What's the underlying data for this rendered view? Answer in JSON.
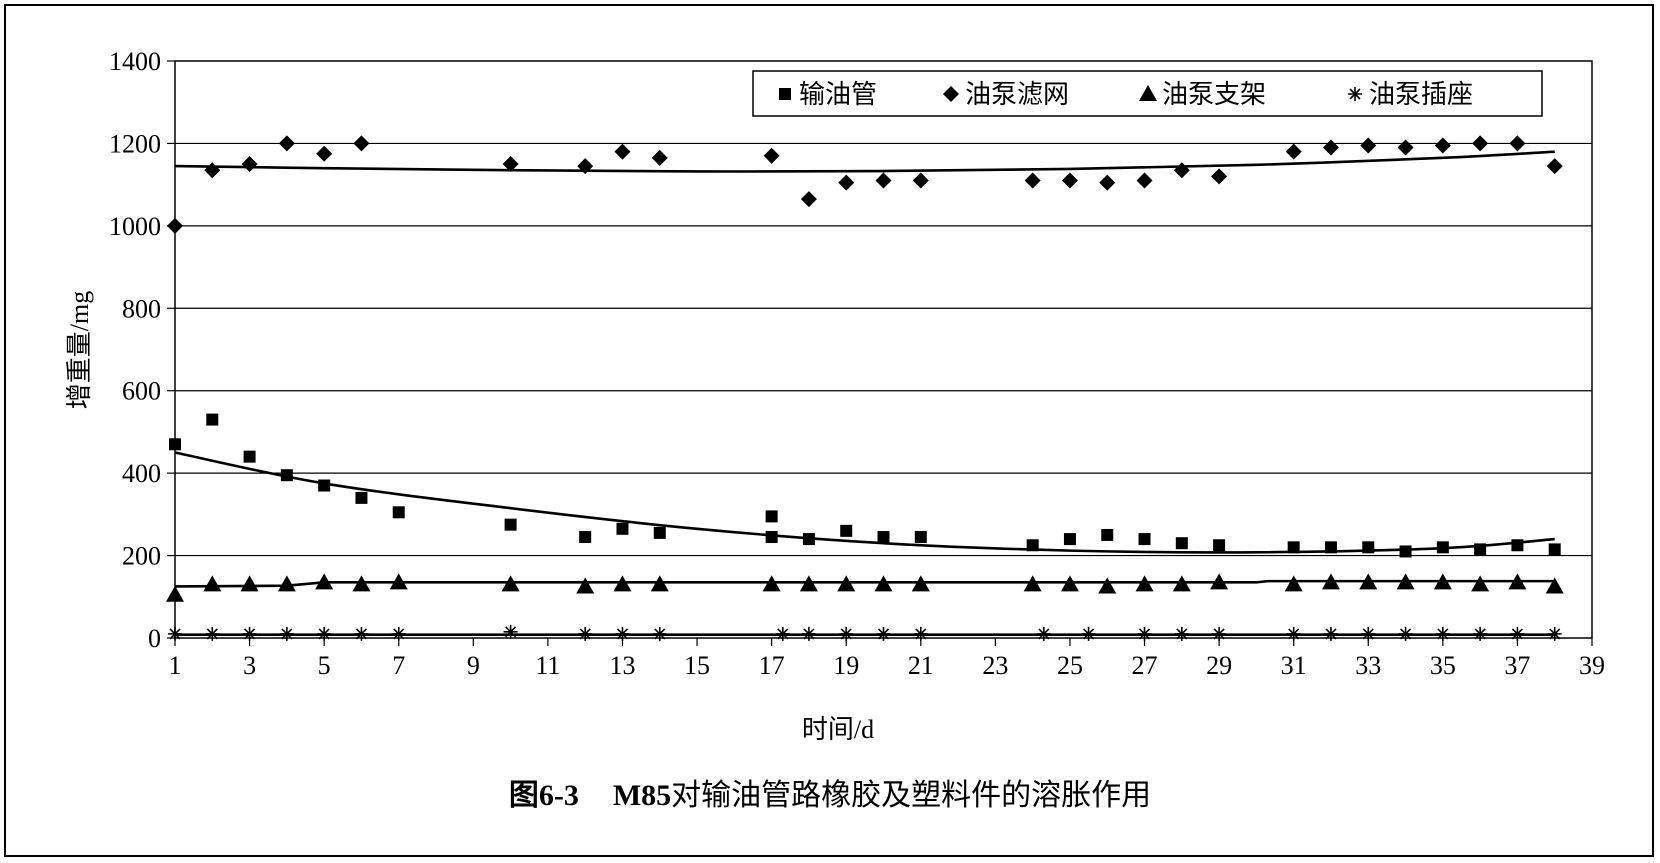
{
  "chart_data": {
    "type": "scatter",
    "title": "",
    "xlabel": "时间/d",
    "ylabel": "增重量/mg",
    "xlim": [
      1,
      39
    ],
    "ylim": [
      0,
      1400
    ],
    "xticks": [
      1,
      3,
      5,
      7,
      9,
      11,
      13,
      15,
      17,
      19,
      21,
      23,
      25,
      27,
      29,
      31,
      33,
      35,
      37,
      39
    ],
    "yticks": [
      0,
      200,
      400,
      600,
      800,
      1000,
      1200,
      1400
    ],
    "grid": "horizontal",
    "legend_position": "top-right",
    "series": [
      {
        "name": "输油管",
        "marker": "square",
        "x": [
          1,
          2,
          3,
          4,
          5,
          6,
          7,
          10,
          12,
          13,
          14,
          17,
          17,
          18,
          19,
          20,
          21,
          24,
          25,
          26,
          27,
          28,
          29,
          31,
          32,
          33,
          34,
          35,
          36,
          37,
          38
        ],
        "y": [
          470,
          530,
          440,
          395,
          370,
          340,
          305,
          275,
          245,
          265,
          255,
          295,
          245,
          240,
          260,
          245,
          245,
          225,
          240,
          250,
          240,
          230,
          225,
          220,
          220,
          220,
          210,
          220,
          215,
          225,
          215
        ],
        "trend": [
          [
            1,
            450
          ],
          [
            5,
            375
          ],
          [
            10,
            315
          ],
          [
            15,
            265
          ],
          [
            20,
            230
          ],
          [
            25,
            212
          ],
          [
            30,
            208
          ],
          [
            35,
            218
          ],
          [
            38,
            240
          ]
        ]
      },
      {
        "name": "油泵滤网",
        "marker": "diamond",
        "x": [
          1,
          2,
          3,
          4,
          5,
          6,
          10,
          12,
          13,
          14,
          17,
          18,
          19,
          20,
          21,
          24,
          25,
          26,
          27,
          28,
          29,
          31,
          32,
          33,
          34,
          35,
          36,
          37,
          38
        ],
        "y": [
          1000,
          1135,
          1150,
          1200,
          1175,
          1200,
          1150,
          1145,
          1180,
          1165,
          1170,
          1065,
          1105,
          1110,
          1110,
          1110,
          1110,
          1105,
          1110,
          1135,
          1120,
          1180,
          1190,
          1195,
          1190,
          1195,
          1200,
          1200,
          1145
        ],
        "trend": [
          [
            1,
            1145
          ],
          [
            5,
            1140
          ],
          [
            10,
            1135
          ],
          [
            15,
            1132
          ],
          [
            20,
            1133
          ],
          [
            25,
            1138
          ],
          [
            30,
            1148
          ],
          [
            35,
            1165
          ],
          [
            38,
            1180
          ]
        ]
      },
      {
        "name": "油泵支架",
        "marker": "triangle",
        "x": [
          1,
          2,
          3,
          4,
          5,
          6,
          7,
          10,
          12,
          13,
          14,
          17,
          18,
          19,
          20,
          21,
          24,
          25,
          26,
          27,
          28,
          29,
          31,
          32,
          33,
          34,
          35,
          36,
          37,
          38
        ],
        "y": [
          105,
          130,
          130,
          130,
          135,
          130,
          135,
          130,
          125,
          130,
          130,
          130,
          130,
          130,
          130,
          130,
          130,
          130,
          125,
          130,
          130,
          135,
          130,
          135,
          135,
          135,
          135,
          130,
          135,
          125
        ],
        "trend": [
          [
            1,
            125
          ],
          [
            4,
            127
          ],
          [
            5,
            135
          ],
          [
            30,
            135
          ],
          [
            30.3,
            138
          ],
          [
            38,
            138
          ]
        ]
      },
      {
        "name": "油泵插座",
        "marker": "asterisk",
        "x": [
          1,
          2,
          3,
          4,
          5,
          6,
          7,
          10,
          12,
          13,
          14,
          17.3,
          18,
          19,
          20,
          21,
          24.3,
          25.5,
          27,
          28,
          29,
          31,
          32,
          33,
          34,
          35,
          36,
          37,
          38
        ],
        "y": [
          10,
          10,
          10,
          10,
          10,
          10,
          10,
          15,
          10,
          10,
          10,
          10,
          10,
          10,
          10,
          10,
          10,
          10,
          10,
          10,
          10,
          10,
          10,
          10,
          10,
          10,
          10,
          10,
          10
        ],
        "trend": [
          [
            1,
            8
          ],
          [
            38,
            8
          ]
        ]
      }
    ]
  },
  "caption": {
    "figure_number": "图6-3",
    "m85": "M85",
    "text": "对输油管路橡胶及塑料件的溶胀作用"
  }
}
